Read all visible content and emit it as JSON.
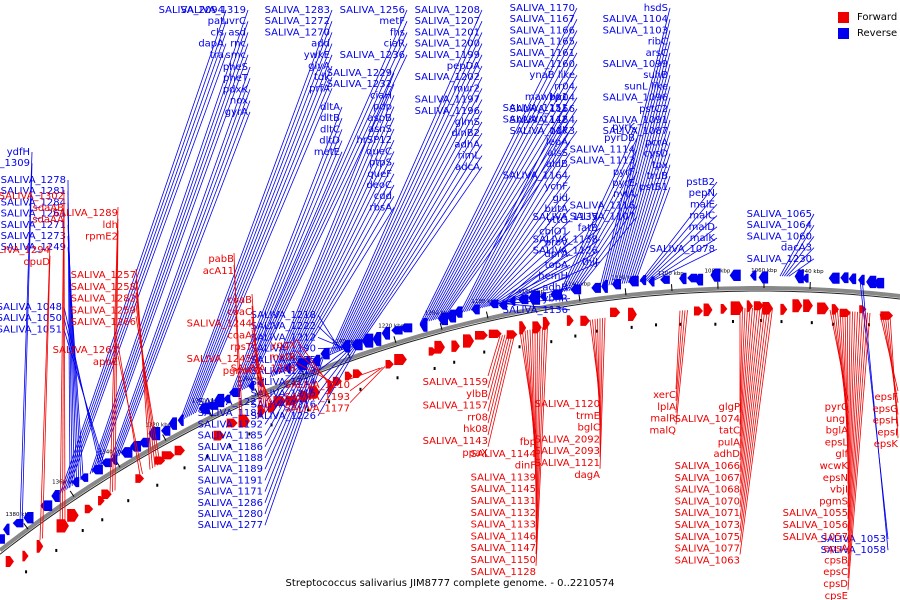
{
  "caption": "Streptococcus salivarius JIM8777 complete genome. - 0..2210574",
  "legend": [
    {
      "label": "Forward",
      "color": "#ee0000"
    },
    {
      "label": "Reverse",
      "color": "#0000ee"
    }
  ],
  "colors": {
    "forward": "#ee0000",
    "reverse": "#0000ee",
    "backbone": "#888888"
  },
  "scale_ticks": [
    "1380 kbp",
    "1360 kbp",
    "1340 kbp",
    "1320 kbp",
    "1300 kbp",
    "1280 kbp",
    "1260 kbp",
    "1240 kbp",
    "1220 kbp",
    "1200 kbp",
    "1180 kbp",
    "1160 kbp",
    "1140 kbp",
    "1120 kbp",
    "1100 kbp",
    "1080 kbp",
    "1060 kbp",
    "1040 kbp"
  ],
  "reverse_labels": [
    "SALIVA_2094",
    "pat",
    "cls",
    "dapA",
    "tra",
    "SALIVA_1319",
    "uvrC",
    "asd",
    "rnc",
    "smc",
    "pheS",
    "pheT",
    "pdxK",
    "nox",
    "gyrA",
    "ydfH",
    "SALIVA_1309",
    "SALIVA_1283",
    "SALIVA_1272",
    "SALIVA_1270",
    "add",
    "ywkE",
    "glyA",
    "tdk",
    "prfA",
    "SALIVA_1256",
    "metF",
    "fhs",
    "ciaR",
    "SALIVA_1236",
    "SALIVA_1229",
    "SALIVA_1232",
    "ciaH",
    "pdp",
    "aspB",
    "asnS",
    "hrSP12",
    "queC",
    "ptpS",
    "queF",
    "deoC",
    "cdd",
    "rbsA",
    "dltA",
    "dltB",
    "dltC",
    "dltD",
    "metE",
    "SALIVA_1208",
    "SALIVA_1207",
    "SALIVA_1201",
    "SALIVA_1200",
    "SALIVA_1199",
    "pepDA",
    "SALIVA_1202",
    "mur2",
    "SALIVA_1197",
    "SALIVA_1196",
    "glmS",
    "dinB2",
    "adhA",
    "rimL",
    "adcA",
    "SALIVA_1170",
    "SALIVA_1167",
    "SALIVA_1166",
    "SALIVA_1165",
    "SALIVA_1161",
    "SALIVA_1160",
    "ynaB like",
    "rr04",
    "hk04",
    "SALIVA_1156",
    "SALIVA_1154",
    "SALIVA_1173",
    "mawbp1",
    "SALIVA_1151",
    "SALIVA_1142",
    "ndk",
    "lepA",
    "alsS",
    "aldB",
    "SALIVA_1164",
    "ychF",
    "gid",
    "butA",
    "yttG",
    "cbiO1",
    "proV",
    "dprA",
    "topA",
    "hemH",
    "adhB",
    "ybhR",
    "SALIVA_1136",
    "SALIVA_1135",
    "fatB",
    "SALIVA_1138",
    "SALIVA_1126",
    "thiJ",
    "pyrK",
    "pyrDB",
    "SALIVA_1114",
    "SALIVA_1113",
    "pyrF",
    "pyrE",
    "nylA",
    "SALIVA_1116",
    "SALIVA_1107",
    "hsdS",
    "SALIVA_1104",
    "SALIVA_1103",
    "ribC",
    "arsC",
    "SALIVA_1099",
    "suhB",
    "sunL like",
    "SALIVA_1096",
    "pstC2",
    "SALIVA_1091",
    "SALIVA_1087",
    "pcrA",
    "cysD",
    "tpx",
    "truB",
    "pstB1",
    "pstB2",
    "pepN",
    "malE",
    "malC",
    "malD",
    "malK",
    "SALIVA_1078",
    "SALIVA_1065",
    "SALIVA_1064",
    "SALIVA_1060",
    "dacA3",
    "SALIVA_1230",
    "SALIVA_1218",
    "SALIVA_1222",
    "SALIVA_1212",
    "SALIVA_1190",
    "SALIVA_1175",
    "SALIVA_1213",
    "SALIVA_1214",
    "SALIVA_1215",
    "SALIVA_1216",
    "SALIVA_1226",
    "SALIVA_1227",
    "SALIVA_1184",
    "SALIVA_1192",
    "SALIVA_1185",
    "SALIVA_1186",
    "SALIVA_1188",
    "SALIVA_1189",
    "SALIVA_1191",
    "SALIVA_1171",
    "SALIVA_1286",
    "SALIVA_1280",
    "SALIVA_1277",
    "SALIVA_1278",
    "SALIVA_1281",
    "SALIVA_1284",
    "SALIVA_1261",
    "SALIVA_1271",
    "SALIVA_1273",
    "SALIVA_1249",
    "SALIVA_1048",
    "SALIVA_1050",
    "SALIVA_1051",
    "SALIVA_1053",
    "SALIVA_1058"
  ],
  "forward_labels": [
    "SALIVA_1302",
    "sdaAB",
    "sdaAA",
    "SALIVA_1289",
    "ldh",
    "rpmE2",
    "SALIVA_1294",
    "opuD",
    "SALIVA_1257",
    "SALIVA_1258",
    "SALIVA_1282",
    "SALIVA_1259",
    "SALIVA_1266",
    "SALIVA_1267",
    "apbE",
    "pabB",
    "acA11",
    "coaB",
    "coaC",
    "SALIVA_1244",
    "coaA",
    "rpsT",
    "SALIVA_1245",
    "pgmA",
    "yqgX",
    "metR",
    "SALIVA_1206",
    "SALIVA_1210",
    "SALIVA_1193",
    "SALIVA_1177",
    "SALIVA_1159",
    "ylbB",
    "SALIVA_1157",
    "rr08",
    "hk08",
    "SALIVA_1143",
    "ppaX",
    "fbp",
    "SALIVA_1144",
    "dinF",
    "SALIVA_1139",
    "SALIVA_1145",
    "SALIVA_1131",
    "SALIVA_1132",
    "SALIVA_1133",
    "SALIVA_1146",
    "SALIVA_1147",
    "SALIVA_1150",
    "SALIVA_1128",
    "SALIVA_1120",
    "trmE",
    "bglC",
    "SALIVA_2092",
    "SALIVA_2093",
    "SALIVA_1121",
    "dagA",
    "xerC",
    "lplA",
    "malR",
    "malQ",
    "glgP",
    "SALIVA_1074",
    "tatC",
    "pulA",
    "adhD",
    "SALIVA_1066",
    "SALIVA_1067",
    "SALIVA_1068",
    "SALIVA_1070",
    "SALIVA_1071",
    "SALIVA_1073",
    "SALIVA_1075",
    "SALIVA_1077",
    "SALIVA_1063",
    "pyrC",
    "ungI",
    "bglA",
    "epsL",
    "glf",
    "wcwK",
    "epsN",
    "vbjI",
    "pgmS",
    "SALIVA_1055",
    "SALIVA_1056",
    "SALIVA_1057",
    "epsA",
    "cpsB",
    "epsC",
    "cpsD",
    "cpsE",
    "epsF",
    "epsG",
    "epsH",
    "epsI",
    "epsK"
  ]
}
